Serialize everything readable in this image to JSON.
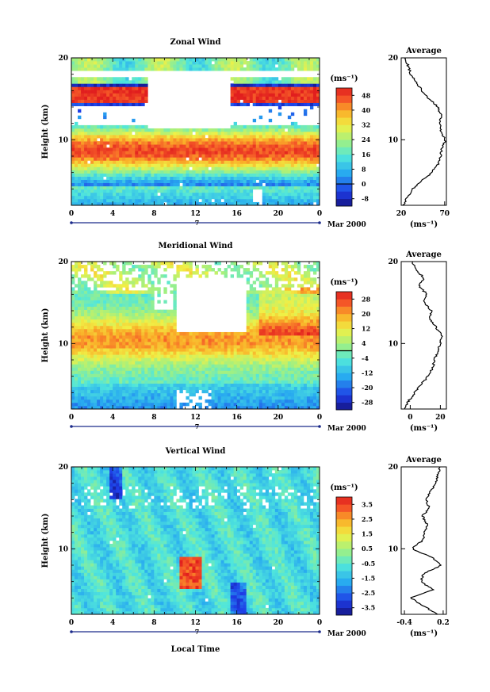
{
  "figure": {
    "xlabel": "Local Time",
    "x_ticks": [
      "0",
      "4",
      "8",
      "12",
      "16",
      "20",
      "0"
    ],
    "date_label": "Mar 2000",
    "date_marker": "7",
    "ylabel": "Height (km)",
    "y_ticks": [
      "20",
      "10"
    ],
    "unit_label": "(ms⁻¹)"
  },
  "chart_data": [
    {
      "type": "heatmap",
      "title": "Zonal Wind",
      "xlabel": "",
      "ylabel": "Height (km)",
      "xlim": [
        0,
        24
      ],
      "ylim": [
        2,
        20
      ],
      "colorbar": {
        "unit": "(ms⁻¹)",
        "ticks": [
          "48",
          "40",
          "32",
          "24",
          "16",
          "8",
          "0",
          "-8"
        ],
        "range": [
          -12,
          52
        ],
        "zero_line": 0
      },
      "profile": {
        "title": "Average",
        "xlabel": "(ms⁻¹)",
        "x_ticks": [
          "20",
          "70"
        ],
        "xlim": [
          20,
          72
        ],
        "y_ticks": [
          "20",
          "10"
        ],
        "heights_km": [
          2,
          3,
          4,
          5,
          6,
          7,
          8,
          9,
          10,
          11,
          12,
          13,
          14,
          15,
          16,
          17,
          18,
          19,
          20
        ],
        "values": [
          22,
          27,
          33,
          44,
          55,
          62,
          65,
          67,
          71,
          66,
          64,
          66,
          62,
          52,
          44,
          37,
          31,
          28,
          25
        ]
      }
    },
    {
      "type": "heatmap",
      "title": "Meridional Wind",
      "xlabel": "",
      "ylabel": "Height (km)",
      "xlim": [
        0,
        24
      ],
      "ylim": [
        2,
        20
      ],
      "colorbar": {
        "unit": "(ms⁻¹)",
        "ticks": [
          "28",
          "20",
          "12",
          "4",
          "-4",
          "-12",
          "-20",
          "-28"
        ],
        "range": [
          -32,
          32
        ],
        "zero_line": 0
      },
      "profile": {
        "title": "Average",
        "xlabel": "(ms⁻¹)",
        "x_ticks": [
          "0",
          "20"
        ],
        "xlim": [
          -6,
          24
        ],
        "y_ticks": [
          "20",
          "10"
        ],
        "heights_km": [
          2,
          3,
          4,
          5,
          6,
          7,
          8,
          9,
          10,
          11,
          12,
          13,
          14,
          15,
          16,
          17,
          18,
          19,
          20
        ],
        "values": [
          -4,
          -1,
          3,
          7,
          12,
          15,
          16,
          18,
          20,
          21,
          17,
          13,
          14,
          9,
          11,
          6,
          9,
          4,
          1
        ]
      }
    },
    {
      "type": "heatmap",
      "title": "Vertical Wind",
      "xlabel": "Local Time",
      "ylabel": "Height (km)",
      "xlim": [
        0,
        24
      ],
      "ylim": [
        2,
        20
      ],
      "colorbar": {
        "unit": "(ms⁻¹)",
        "ticks": [
          "3.5",
          "2.5",
          "1.5",
          "0.5",
          "-0.5",
          "-1.5",
          "-2.5",
          "-3.5"
        ],
        "range": [
          -4,
          4
        ],
        "zero_line": null
      },
      "profile": {
        "title": "Average",
        "xlabel": "(ms⁻¹)",
        "x_ticks": [
          "-0.4",
          "0.2"
        ],
        "xlim": [
          -0.45,
          0.25
        ],
        "y_ticks": [
          "20",
          "10"
        ],
        "heights_km": [
          2,
          3,
          4,
          5,
          6,
          7,
          8,
          9,
          10,
          11,
          12,
          13,
          14,
          15,
          16,
          17,
          18,
          19,
          20
        ],
        "values": [
          0.12,
          -0.1,
          -0.3,
          0.05,
          -0.15,
          -0.1,
          0.18,
          0.02,
          -0.28,
          -0.12,
          -0.08,
          -0.05,
          -0.12,
          -0.02,
          -0.06,
          0.0,
          0.08,
          0.12,
          0.15
        ]
      }
    }
  ]
}
